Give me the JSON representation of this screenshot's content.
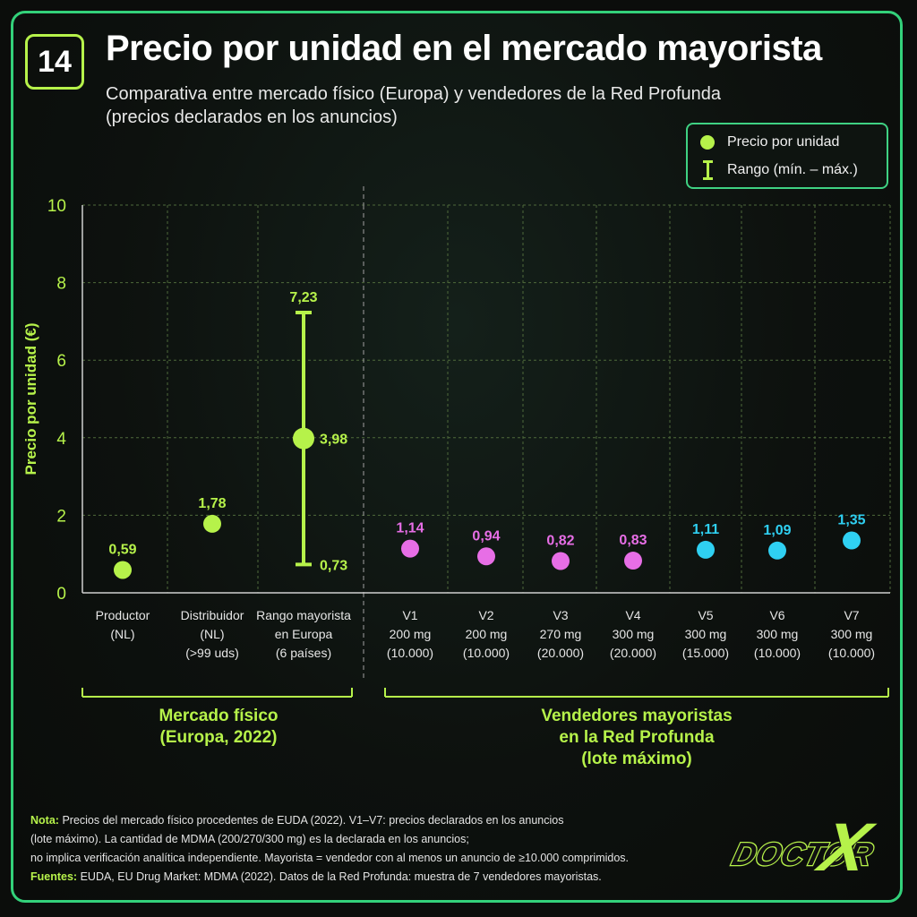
{
  "header": {
    "number": "14",
    "title": "Precio por unidad en el mercado mayorista",
    "subtitle_line1": "Comparativa entre mercado físico (Europa) y vendedores de la Red Profunda",
    "subtitle_line2": "(precios declarados en los anuncios)"
  },
  "legend": {
    "point_label": "Precio por unidad",
    "range_label": "Rango (mín. – máx.)"
  },
  "colors": {
    "accent": "#b6f24a",
    "pink": "#e76ee6",
    "cyan": "#2fd0f2",
    "border": "#33d17a"
  },
  "chart_data": {
    "type": "scatter",
    "ylabel": "Precio por unidad (€)",
    "ylim": [
      0,
      10
    ],
    "yticks": [
      "0",
      "2",
      "4",
      "6",
      "8",
      "10"
    ],
    "grid": true,
    "categories": [
      {
        "lines": [
          "Productor",
          "(NL)"
        ]
      },
      {
        "lines": [
          "Distribuidor",
          "(NL)",
          "(>99 uds)"
        ]
      },
      {
        "lines": [
          "Rango mayorista",
          "en Europa",
          "(6 países)"
        ]
      },
      {
        "lines": [
          "V1",
          "200 mg",
          "(10.000)"
        ]
      },
      {
        "lines": [
          "V2",
          "200 mg",
          "(10.000)"
        ]
      },
      {
        "lines": [
          "V3",
          "270 mg",
          "(20.000)"
        ]
      },
      {
        "lines": [
          "V4",
          "300 mg",
          "(20.000)"
        ]
      },
      {
        "lines": [
          "V5",
          "300 mg",
          "(15.000)"
        ]
      },
      {
        "lines": [
          "V6",
          "300 mg",
          "(10.000)"
        ]
      },
      {
        "lines": [
          "V7",
          "300 mg",
          "(10.000)"
        ]
      }
    ],
    "points": [
      {
        "value": 0.59,
        "label": "0,59",
        "color": "#b6f24a"
      },
      {
        "value": 1.78,
        "label": "1,78",
        "color": "#b6f24a"
      },
      {
        "value": 3.98,
        "label": "3,98",
        "color": "#b6f24a",
        "min": 0.73,
        "min_label": "0,73",
        "max": 7.23,
        "max_label": "7,23"
      },
      {
        "value": 1.14,
        "label": "1,14",
        "color": "#e76ee6"
      },
      {
        "value": 0.94,
        "label": "0,94",
        "color": "#e76ee6"
      },
      {
        "value": 0.82,
        "label": "0,82",
        "color": "#e76ee6"
      },
      {
        "value": 0.83,
        "label": "0,83",
        "color": "#e76ee6"
      },
      {
        "value": 1.11,
        "label": "1,11",
        "color": "#2fd0f2"
      },
      {
        "value": 1.09,
        "label": "1,09",
        "color": "#2fd0f2"
      },
      {
        "value": 1.35,
        "label": "1,35",
        "color": "#2fd0f2"
      }
    ],
    "groups": [
      {
        "lines": [
          "Mercado físico",
          "(Europa, 2022)"
        ],
        "from": 0,
        "to": 2
      },
      {
        "lines": [
          "Vendedores mayoristas",
          "en la Red Profunda",
          "(lote máximo)"
        ],
        "from": 3,
        "to": 9
      }
    ]
  },
  "note": {
    "nota_label": "Nota:",
    "nota_line1": "Precios del mercado físico procedentes de EUDA (2022). V1–V7: precios declarados en los anuncios",
    "nota_line2": "(lote máximo). La cantidad de MDMA (200/270/300 mg) es la declarada en los anuncios;",
    "nota_line3": "no implica verificación analítica independiente.  Mayorista = vendedor con al menos un anuncio de ≥10.000 comprimidos.",
    "fuentes_label": "Fuentes:",
    "fuentes_text": "EUDA, EU Drug Market: MDMA (2022). Datos de la Red Profunda: muestra de 7 vendedores mayoristas."
  },
  "logo": {
    "text_doctor": "DOCTOR",
    "text_x": "X"
  }
}
